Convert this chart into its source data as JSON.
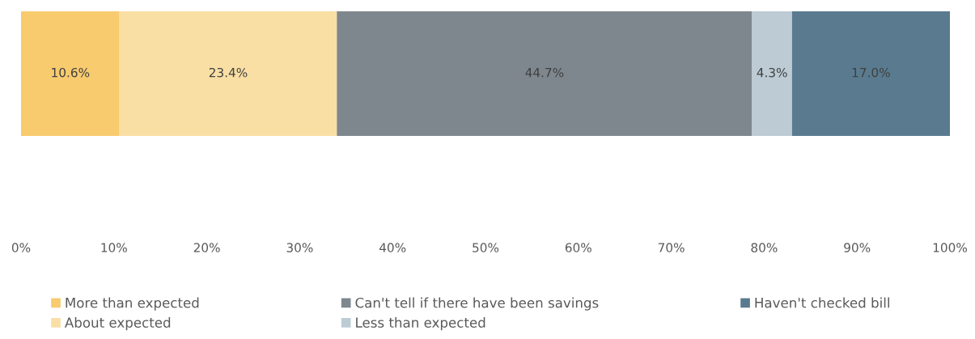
{
  "chart_data": {
    "type": "bar",
    "orientation": "horizontal",
    "stacked": true,
    "categories": [
      null
    ],
    "series": [
      {
        "name": "More than expected",
        "color": "#f7cb6e",
        "values": [
          10.6
        ],
        "value_labels": [
          "10.6%"
        ]
      },
      {
        "name": "About expected",
        "color": "#fadfa5",
        "values": [
          23.4
        ],
        "value_labels": [
          "23.4%"
        ]
      },
      {
        "name": "Can't tell if there have been savings",
        "color": "#7f878e",
        "values": [
          44.7
        ],
        "value_labels": [
          "44.7%"
        ]
      },
      {
        "name": "Less than expected",
        "color": "#bccbd4",
        "values": [
          4.3
        ],
        "value_labels": [
          "4.3%"
        ]
      },
      {
        "name": "Haven't checked bill",
        "color": "#5a7b8f",
        "values": [
          17.0
        ],
        "value_labels": [
          "17.0%"
        ]
      }
    ],
    "xlim": [
      0,
      100
    ],
    "xticks": [
      {
        "value": 0,
        "label": "0%"
      },
      {
        "value": 10,
        "label": "10%"
      },
      {
        "value": 20,
        "label": "20%"
      },
      {
        "value": 30,
        "label": "30%"
      },
      {
        "value": 40,
        "label": "40%"
      },
      {
        "value": 50,
        "label": "50%"
      },
      {
        "value": 60,
        "label": "60%"
      },
      {
        "value": 70,
        "label": "70%"
      },
      {
        "value": 80,
        "label": "80%"
      },
      {
        "value": 90,
        "label": "90%"
      },
      {
        "value": 100,
        "label": "100%"
      }
    ],
    "grid": false,
    "legend": "bottom"
  }
}
